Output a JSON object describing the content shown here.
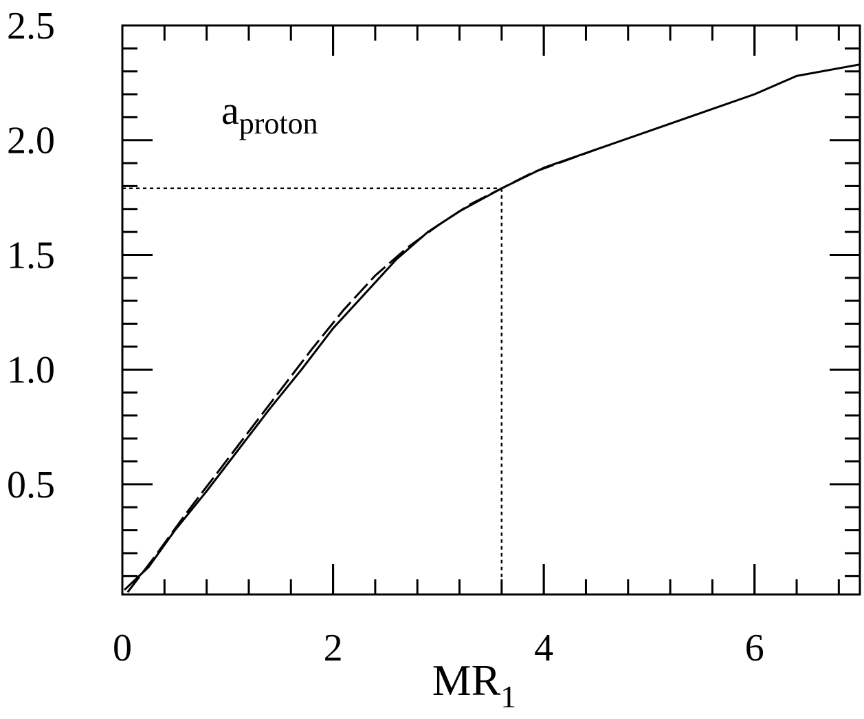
{
  "chart_data": {
    "type": "line",
    "xlabel_main": "MR",
    "xlabel_sub": "1",
    "ylabel": "",
    "annotation_main": "a",
    "annotation_sub": "proton",
    "xlim": [
      0,
      7
    ],
    "ylim": [
      0.02,
      2.5
    ],
    "x_ticks": [
      0,
      2,
      4,
      6
    ],
    "x_tick_labels": [
      "0",
      "2",
      "4",
      "6"
    ],
    "y_ticks": [
      0.5,
      1.0,
      1.5,
      2.0,
      2.5
    ],
    "y_tick_labels": [
      "0.5",
      "1.0",
      "1.5",
      "2.0",
      "2.5"
    ],
    "x_minor_step": 0.4,
    "y_minor_step": 0.1,
    "grid": false,
    "series": [
      {
        "style": "solid",
        "x": [
          0.02,
          0.25,
          0.5,
          0.8,
          1.1,
          1.4,
          1.7,
          2.0,
          2.3,
          2.6,
          2.9,
          3.2,
          3.6,
          4.0,
          4.5,
          5.0,
          5.5,
          6.0,
          6.4,
          7.0
        ],
        "y": [
          0.04,
          0.14,
          0.3,
          0.47,
          0.65,
          0.83,
          1.0,
          1.18,
          1.33,
          1.48,
          1.6,
          1.69,
          1.79,
          1.88,
          1.96,
          2.04,
          2.12,
          2.2,
          2.28,
          2.33
        ]
      },
      {
        "style": "dashed",
        "x": [
          0.05,
          0.3,
          0.6,
          0.9,
          1.2,
          1.5,
          1.8,
          2.1,
          2.4,
          2.7,
          3.0,
          3.3,
          3.6,
          3.9,
          4.2,
          4.5
        ],
        "y": [
          0.03,
          0.18,
          0.37,
          0.55,
          0.73,
          0.91,
          1.09,
          1.26,
          1.41,
          1.53,
          1.63,
          1.72,
          1.79,
          1.86,
          1.91,
          1.96
        ]
      }
    ],
    "reference_lines": {
      "x": 3.6,
      "y": 1.79,
      "style": "dotted"
    }
  }
}
